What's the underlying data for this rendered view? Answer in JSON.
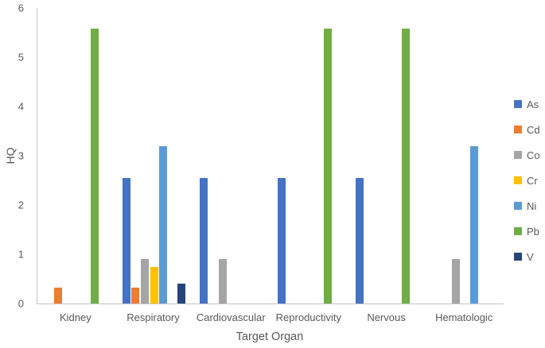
{
  "chart_data": {
    "type": "bar",
    "title": "",
    "xlabel": "Target Organ",
    "ylabel": "HQ",
    "ylim": [
      0,
      6
    ],
    "yticks": [
      0,
      1,
      2,
      3,
      4,
      5,
      6
    ],
    "grid": false,
    "legend_position": "right",
    "categories": [
      "Kidney",
      "Respiratory",
      "Cardiovascular",
      "Reproductivity",
      "Nervous",
      "Hematologic"
    ],
    "series": [
      {
        "name": "As",
        "color": "#4472C4",
        "values": [
          0,
          2.55,
          2.55,
          2.55,
          2.55,
          0
        ]
      },
      {
        "name": "Cd",
        "color": "#ED7D31",
        "values": [
          0.33,
          0.33,
          0,
          0,
          0,
          0
        ]
      },
      {
        "name": "Co",
        "color": "#A5A5A5",
        "values": [
          0,
          0.91,
          0.91,
          0,
          0,
          0.91
        ]
      },
      {
        "name": "Cr",
        "color": "#FFC000",
        "values": [
          0,
          0.74,
          0,
          0,
          0,
          0
        ]
      },
      {
        "name": "Ni",
        "color": "#5B9BD5",
        "values": [
          0,
          3.2,
          0,
          0,
          0,
          3.2
        ]
      },
      {
        "name": "Pb",
        "color": "#70AD47",
        "values": [
          5.58,
          0,
          0,
          5.58,
          5.58,
          0
        ]
      },
      {
        "name": "V",
        "color": "#264478",
        "values": [
          0,
          0.4,
          0,
          0,
          0,
          0
        ]
      }
    ]
  }
}
